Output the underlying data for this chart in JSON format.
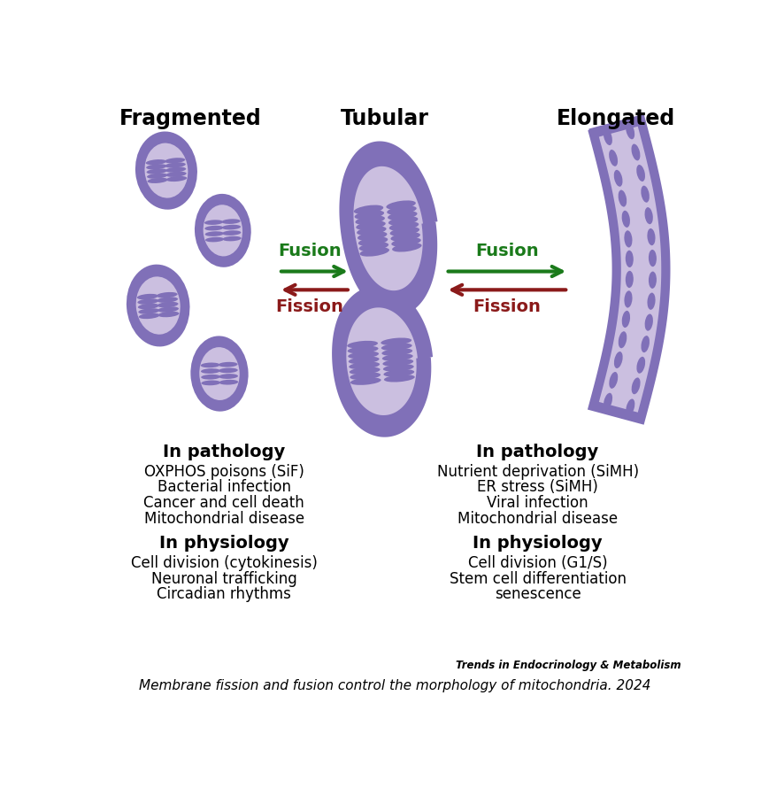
{
  "title_fragmented": "Fragmented",
  "title_tubular": "Tubular",
  "title_elongated": "Elongated",
  "fusion_color": "#1a7a1a",
  "fission_color": "#8b1a1a",
  "mito_outer_color": "#8070b8",
  "mito_inner_color": "#cbbfe0",
  "crista_color": "#8070b8",
  "background_color": "#ffffff",
  "text_color": "#000000",
  "left_pathology_title": "In pathology",
  "left_pathology_items": [
    "OXPHOS poisons (SiF)",
    "Bacterial infection",
    "Cancer and cell death",
    "Mitochondrial disease"
  ],
  "left_physiology_title": "In physiology",
  "left_physiology_items": [
    "Cell division (cytokinesis)",
    "Neuronal trafficking",
    "Circadian rhythms"
  ],
  "right_pathology_title": "In pathology",
  "right_pathology_items": [
    "Nutrient deprivation (SiMH)",
    "ER stress (SiMH)",
    "Viral infection",
    "Mitochondrial disease"
  ],
  "right_physiology_title": "In physiology",
  "right_physiology_items": [
    "Cell division (G1/S)",
    "Stem cell differentiation",
    "senescence"
  ],
  "journal_text": "Trends in Endocrinology & Metabolism",
  "caption": "Membrane fission and fusion control the morphology of mitochondria. 2024"
}
